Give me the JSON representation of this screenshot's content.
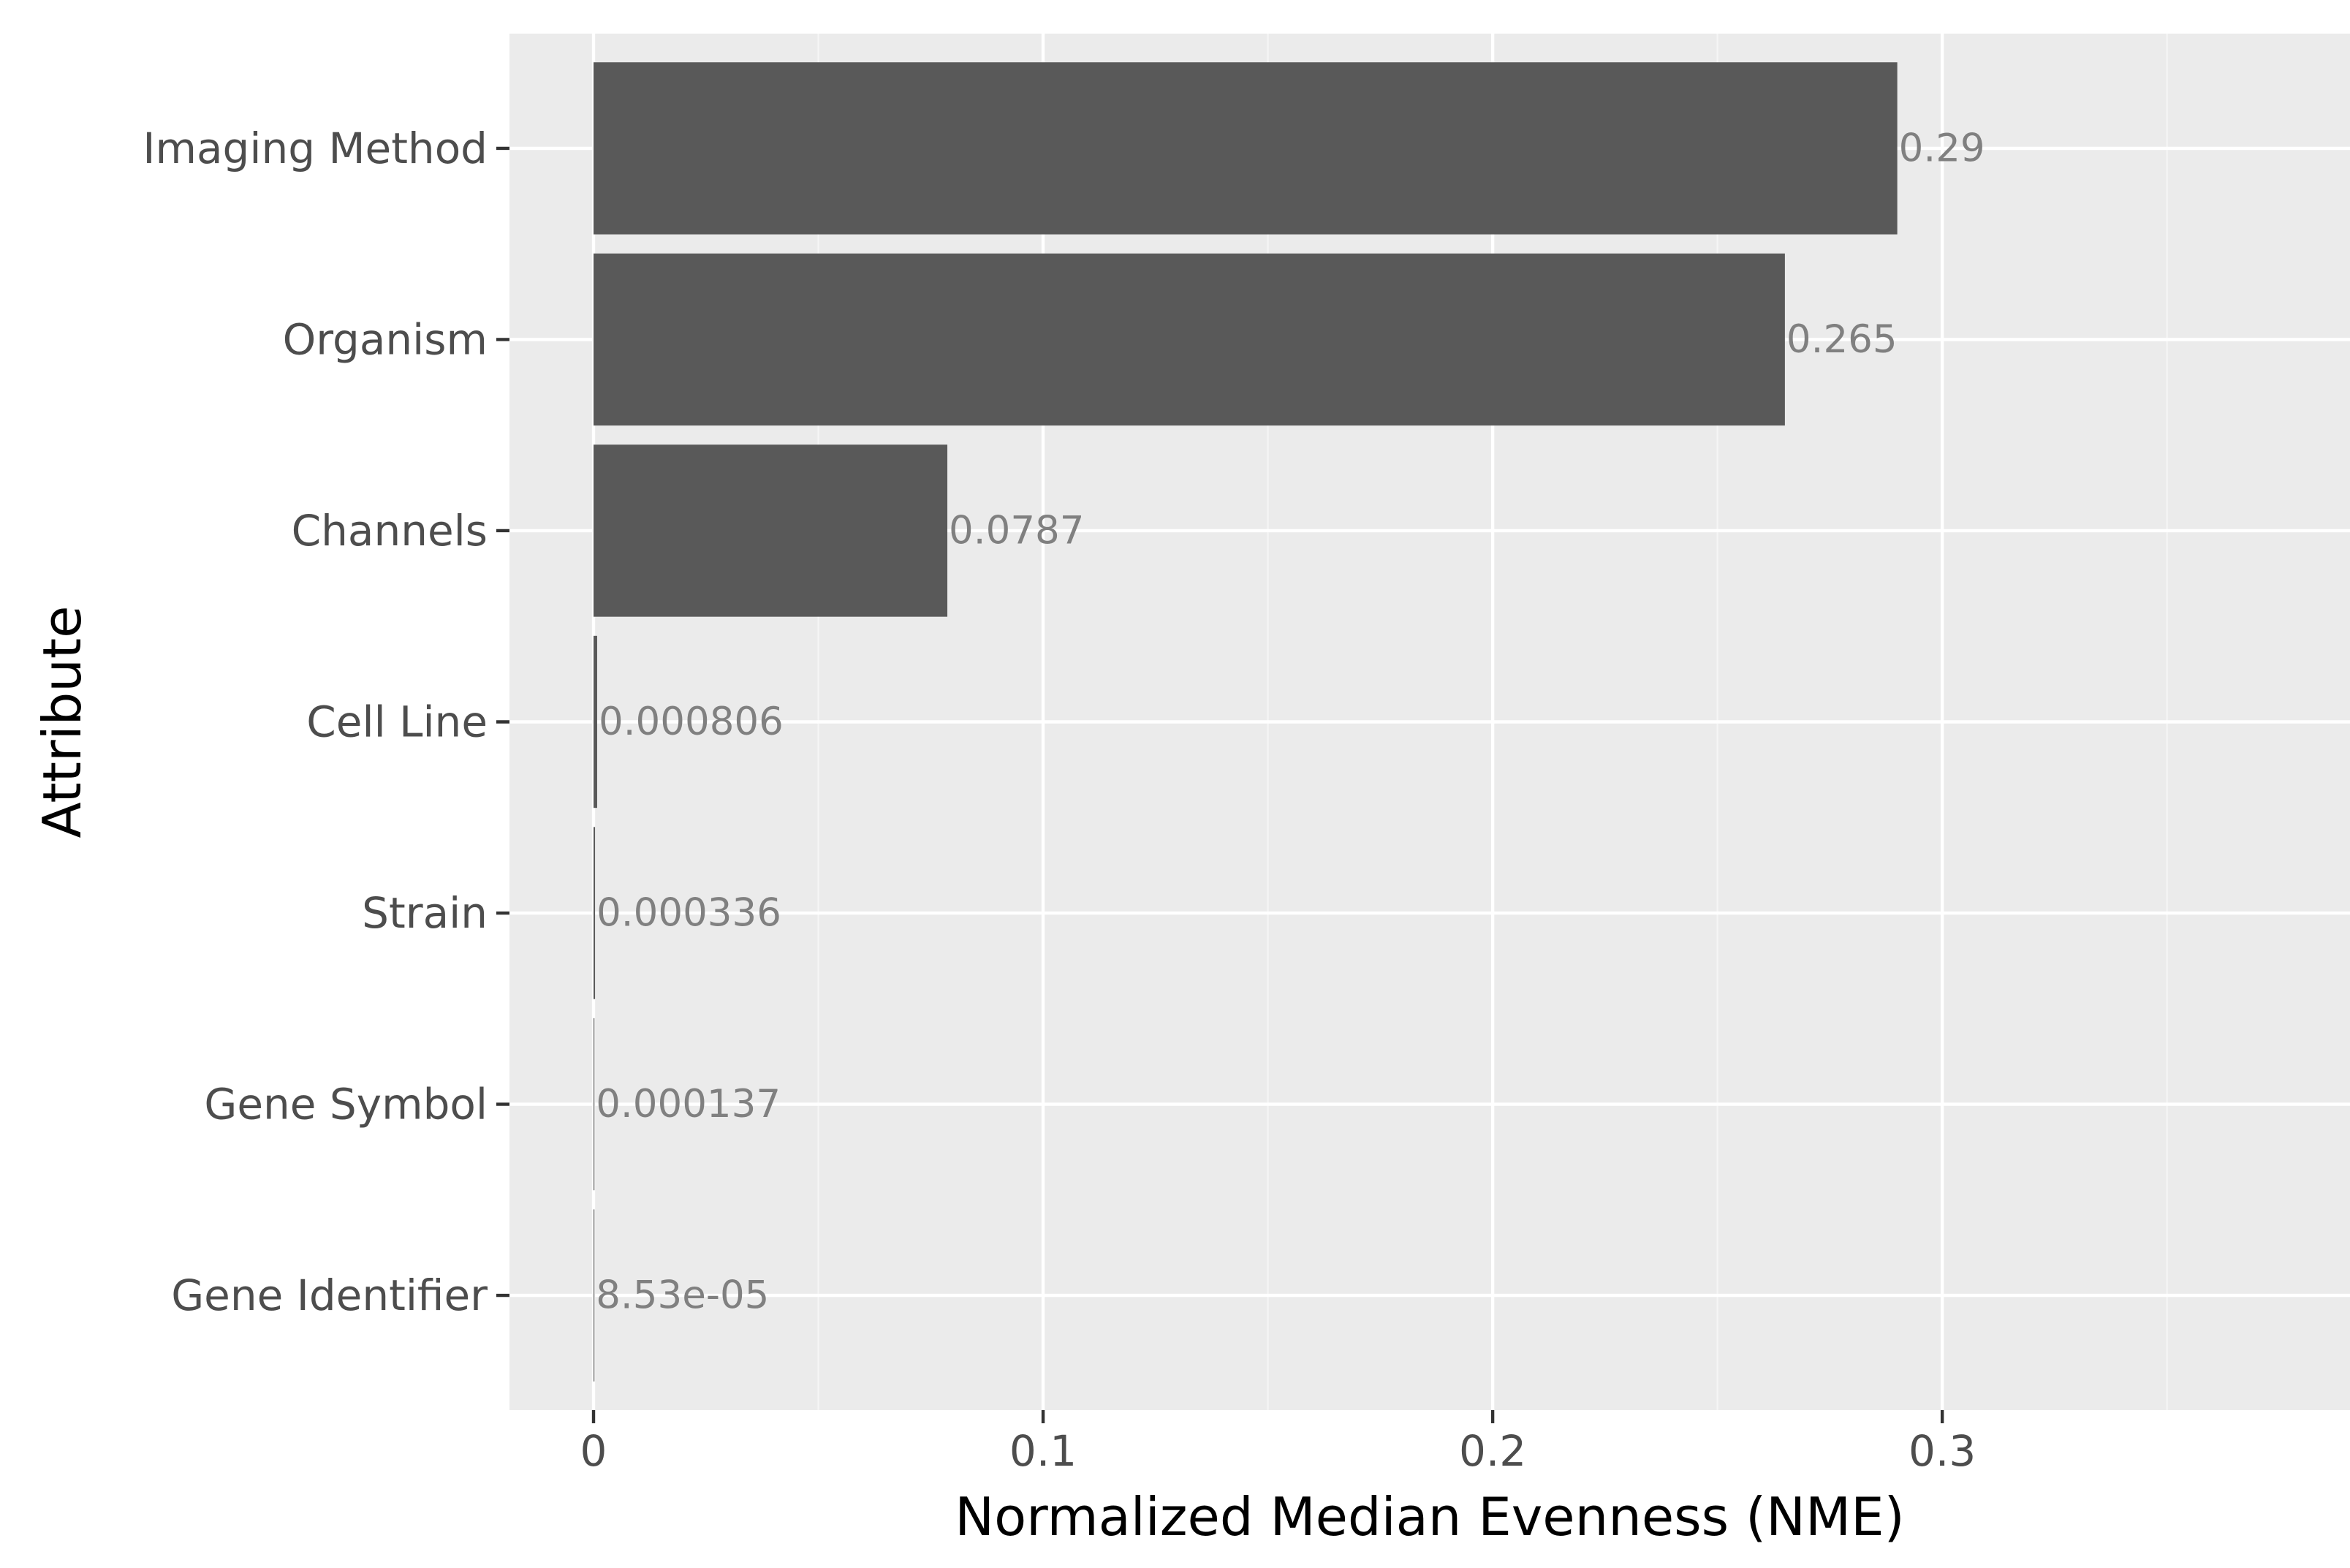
{
  "chart_data": {
    "type": "bar",
    "orientation": "horizontal",
    "categories": [
      "Imaging Method",
      "Organism",
      "Channels",
      "Cell Line",
      "Strain",
      "Gene Symbol",
      "Gene Identifier"
    ],
    "values": [
      0.29,
      0.265,
      0.0787,
      0.000806,
      0.000336,
      0.000137,
      8.53e-05
    ],
    "data_labels": [
      "0.29",
      "0.265",
      "0.0787",
      "0.000806",
      "0.000336",
      "0.000137",
      "8.53e-05"
    ],
    "xlabel": "Normalized Median Evenness (NME)",
    "ylabel": "Attribute",
    "xlim": [
      -0.0187,
      0.3907
    ],
    "xticks": [
      0,
      0.1,
      0.2,
      0.3
    ],
    "xtick_labels": [
      "0",
      "0.1",
      "0.2",
      "0.3"
    ],
    "grid": true,
    "legend": "none",
    "colors": {
      "panel_background": "#ebebeb",
      "bar_fill": "#595959",
      "grid_major": "#ffffff",
      "grid_minor": "#f5f5f5",
      "axis_text": "#4d4d4d",
      "data_label_text": "#808080",
      "title_text": "#000000"
    }
  }
}
